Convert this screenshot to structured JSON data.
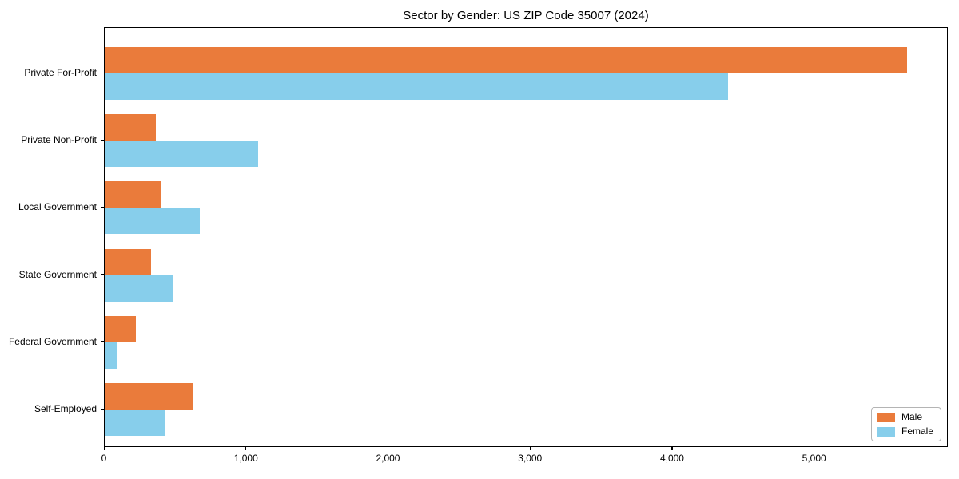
{
  "figure": {
    "title": "Sector by Gender: US ZIP Code 35007 (2024)"
  },
  "chart_data": {
    "type": "bar",
    "orientation": "horizontal",
    "title": "Sector by Gender: US ZIP Code 35007 (2024)",
    "categories": [
      "Private For-Profit",
      "Private Non-Profit",
      "Local Government",
      "State Government",
      "Federal Government",
      "Self-Employed"
    ],
    "series": [
      {
        "name": "Male",
        "color": "#EA7B3B",
        "values": [
          5650,
          360,
          395,
          325,
          220,
          620
        ]
      },
      {
        "name": "Female",
        "color": "#87CEEB",
        "values": [
          4390,
          1080,
          670,
          480,
          90,
          430
        ]
      }
    ],
    "xlabel": "",
    "ylabel": "",
    "xlim": [
      0,
      5930
    ],
    "xticks": [
      0,
      1000,
      2000,
      3000,
      4000,
      5000
    ],
    "xtick_labels": [
      "0",
      "1,000",
      "2,000",
      "3,000",
      "4,000",
      "5,000"
    ],
    "grid": false,
    "legend": {
      "position": "lower right",
      "entries": [
        "Male",
        "Female"
      ]
    },
    "colors": {
      "male": "#EA7B3B",
      "female": "#87CEEB",
      "axis": "#000000",
      "background": "#FFFFFF",
      "legend_border": "#B4B4B4"
    }
  }
}
